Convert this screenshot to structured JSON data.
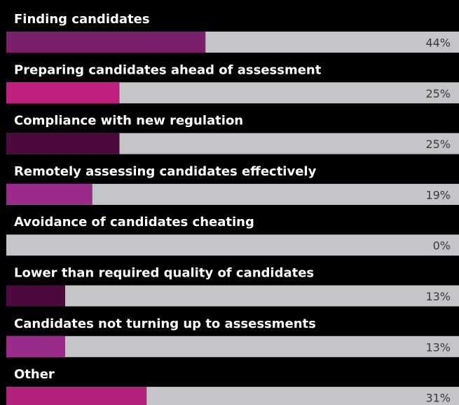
{
  "chart_data": {
    "type": "bar",
    "orientation": "horizontal",
    "categories": [
      "Finding candidates",
      "Preparing candidates ahead of assessment",
      "Compliance with new regulation",
      "Remotely assessing candidates effectively",
      "Avoidance of candidates cheating",
      "Lower than required quality of candidates",
      "Candidates not turning up to assessments",
      "Other"
    ],
    "values": [
      44,
      25,
      25,
      19,
      0,
      13,
      13,
      31
    ],
    "value_labels": [
      "44%",
      "25%",
      "25%",
      "19%",
      "0%",
      "13%",
      "13%",
      "31%"
    ],
    "colors": [
      "#7a1f6c",
      "#c01f80",
      "#4c0a3c",
      "#9a2a8a",
      "#9a2a8a",
      "#4c0a3c",
      "#9a2a8a",
      "#b3207c"
    ],
    "xlim": [
      0,
      100
    ]
  }
}
